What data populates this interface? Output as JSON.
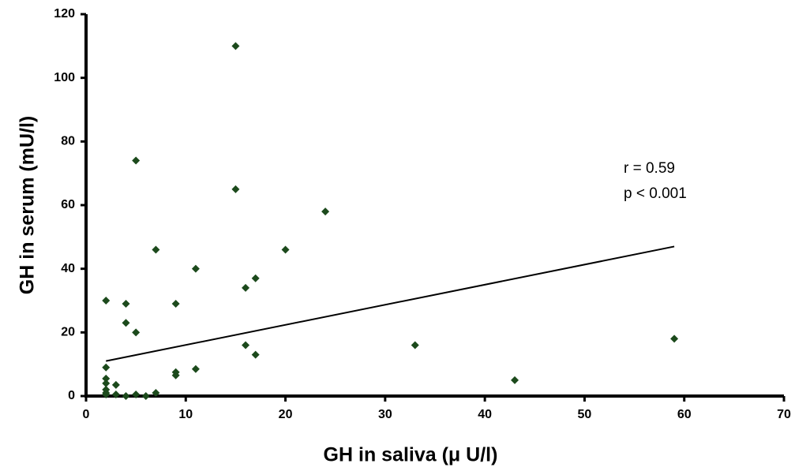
{
  "chart_data": {
    "type": "scatter",
    "x": [
      15,
      5,
      15,
      24,
      7,
      20,
      11,
      17,
      16,
      2,
      4,
      9,
      4,
      5,
      33,
      16,
      59,
      17,
      2,
      11,
      9,
      9,
      43,
      2,
      2,
      3,
      2,
      2,
      2,
      3,
      4,
      5,
      6,
      7
    ],
    "values": [
      110,
      74,
      65,
      58,
      46,
      46,
      40,
      37,
      34,
      30,
      29,
      29,
      23,
      20,
      16,
      16,
      18,
      13,
      9,
      8.5,
      7.5,
      6.5,
      5,
      5.5,
      4,
      3.5,
      2,
      1,
      0.5,
      0.5,
      0,
      0.5,
      0,
      1
    ],
    "color": "#1c4a1c",
    "trend_line": {
      "x": [
        2,
        59
      ],
      "values": [
        11,
        47
      ],
      "color": "#000000"
    },
    "annotations": [
      "r = 0.59",
      "p < 0.001"
    ],
    "x_label": "GH in saliva (μ U/l)",
    "y_label": "GH in serum (mU/l)",
    "xlim": [
      0,
      70
    ],
    "xticks": [
      0,
      10,
      20,
      30,
      40,
      50,
      60,
      70
    ],
    "ylim": [
      0,
      120
    ],
    "yticks": [
      0,
      20,
      40,
      60,
      80,
      100,
      120
    ]
  }
}
